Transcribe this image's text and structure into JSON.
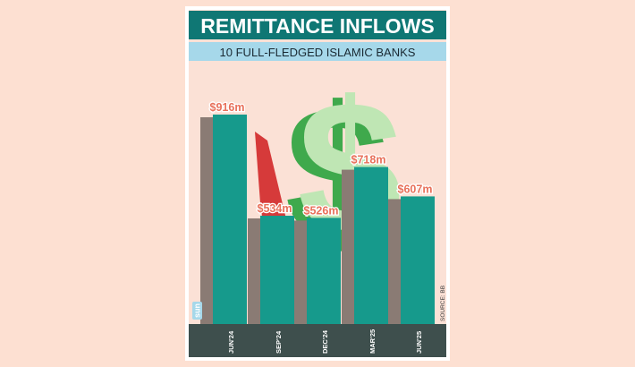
{
  "chart_data": {
    "type": "bar",
    "title": "REMITTANCE INFLOWS",
    "subtitle": "10 FULL-FLEDGED ISLAMIC BANKS",
    "categories": [
      "JUN'24",
      "SEP'24",
      "DEC'24",
      "MAR'25",
      "JUN'25"
    ],
    "values": [
      916,
      534,
      526,
      718,
      607
    ],
    "value_labels": [
      "$916m",
      "$534m",
      "$526m",
      "$718m",
      "$607m"
    ],
    "ylim": [
      0,
      1000
    ],
    "grid": false,
    "source": "SOURCE: BB",
    "logo": "sun"
  },
  "colors": {
    "background": "#fde0d2",
    "panel": "#fbe1d6",
    "title_bar": "#0f7774",
    "subtitle_bar": "#a6d8ea",
    "bar_front": "#169a8c",
    "bar_shadow": "#8a7b74",
    "value_label": "#e8705a",
    "bottom_band": "#3e4f4d",
    "dollar_green": "#3fa94c",
    "dollar_light": "#bfe6b4",
    "arrow_red": "#d63a3a"
  }
}
